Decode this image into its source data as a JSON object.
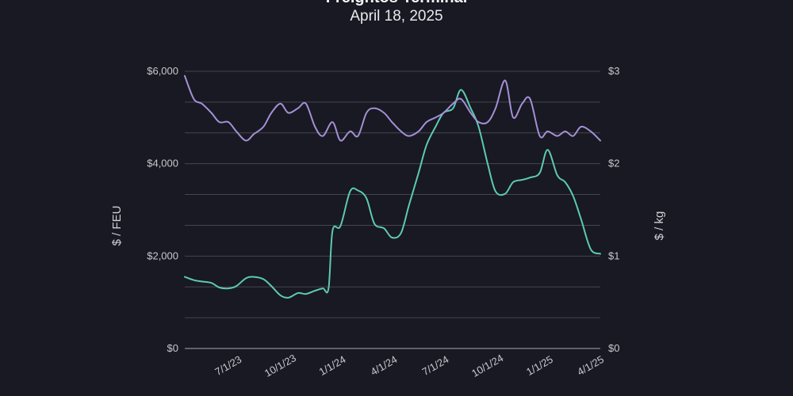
{
  "chart_data": {
    "type": "line",
    "title": "Freightos Terminal",
    "subtitle": "April 18, 2025",
    "ylabel_left": "$ / FEU",
    "ylabel_right": "$ / kg",
    "ylim_left": [
      0,
      6000
    ],
    "ylim_right": [
      0,
      3
    ],
    "x_range": [
      "2023-04-15",
      "2025-04-18"
    ],
    "x_ticks": [
      {
        "date": "2023-07-01",
        "label": "7/1/23"
      },
      {
        "date": "2023-10-01",
        "label": "10/1/23"
      },
      {
        "date": "2024-01-01",
        "label": "1/1/24"
      },
      {
        "date": "2024-04-01",
        "label": "4/1/24"
      },
      {
        "date": "2024-07-01",
        "label": "7/1/24"
      },
      {
        "date": "2024-10-01",
        "label": "10/1/24"
      },
      {
        "date": "2025-01-01",
        "label": "1/1/25"
      },
      {
        "date": "2025-04-01",
        "label": "4/1/25"
      }
    ],
    "y_ticks_left": [
      {
        "value": 0,
        "label": "$0"
      },
      {
        "value": 2000,
        "label": "$2,000"
      },
      {
        "value": 4000,
        "label": "$4,000"
      },
      {
        "value": 6000,
        "label": "$6,000"
      }
    ],
    "y_ticks_right": [
      {
        "value": 0,
        "label": "$0"
      },
      {
        "value": 1,
        "label": "$1"
      },
      {
        "value": 2,
        "label": "$2"
      },
      {
        "value": 3,
        "label": "$3"
      }
    ],
    "gridlines_left": [
      0,
      666.7,
      1333.3,
      2000,
      2666.7,
      3333.3,
      4000,
      4666.7,
      5333.3,
      6000
    ],
    "series": [
      {
        "axis": "left",
        "color": "#5ec9b4",
        "x": [
          "2023-04-15",
          "2023-05-01",
          "2023-05-15",
          "2023-06-01",
          "2023-06-15",
          "2023-07-01",
          "2023-07-15",
          "2023-08-01",
          "2023-08-15",
          "2023-09-01",
          "2023-09-15",
          "2023-10-01",
          "2023-10-15",
          "2023-11-01",
          "2023-11-15",
          "2023-12-01",
          "2023-12-15",
          "2023-12-25",
          "2024-01-01",
          "2024-01-15",
          "2024-02-01",
          "2024-02-15",
          "2024-03-01",
          "2024-03-15",
          "2024-04-01",
          "2024-04-15",
          "2024-05-01",
          "2024-05-15",
          "2024-06-01",
          "2024-06-15",
          "2024-07-01",
          "2024-07-15",
          "2024-08-01",
          "2024-08-15",
          "2024-09-01",
          "2024-09-15",
          "2024-10-01",
          "2024-10-15",
          "2024-11-01",
          "2024-11-15",
          "2024-12-01",
          "2024-12-15",
          "2025-01-01",
          "2025-01-15",
          "2025-02-01",
          "2025-02-15",
          "2025-03-01",
          "2025-03-15",
          "2025-04-01",
          "2025-04-18"
        ],
        "values": [
          1550,
          1480,
          1450,
          1420,
          1320,
          1300,
          1350,
          1520,
          1550,
          1500,
          1350,
          1150,
          1100,
          1200,
          1180,
          1250,
          1300,
          1300,
          2550,
          2650,
          3400,
          3420,
          3250,
          2700,
          2600,
          2400,
          2500,
          3100,
          3800,
          4400,
          4800,
          5100,
          5200,
          5600,
          5200,
          4800,
          4000,
          3400,
          3350,
          3600,
          3650,
          3700,
          3800,
          4300,
          3750,
          3600,
          3300,
          2800,
          2150,
          2050
        ]
      },
      {
        "axis": "right",
        "color": "#a58fd6",
        "x": [
          "2023-04-15",
          "2023-05-01",
          "2023-05-15",
          "2023-06-01",
          "2023-06-15",
          "2023-07-01",
          "2023-07-15",
          "2023-08-01",
          "2023-08-15",
          "2023-09-01",
          "2023-09-15",
          "2023-10-01",
          "2023-10-15",
          "2023-11-01",
          "2023-11-15",
          "2023-12-01",
          "2023-12-15",
          "2024-01-01",
          "2024-01-15",
          "2024-02-01",
          "2024-02-15",
          "2024-03-01",
          "2024-03-15",
          "2024-04-01",
          "2024-04-15",
          "2024-05-01",
          "2024-05-15",
          "2024-06-01",
          "2024-06-15",
          "2024-07-01",
          "2024-07-15",
          "2024-08-01",
          "2024-08-15",
          "2024-09-01",
          "2024-09-15",
          "2024-10-01",
          "2024-10-15",
          "2024-11-01",
          "2024-11-15",
          "2024-12-01",
          "2024-12-15",
          "2025-01-01",
          "2025-01-15",
          "2025-02-01",
          "2025-02-15",
          "2025-03-01",
          "2025-03-15",
          "2025-04-01",
          "2025-04-18"
        ],
        "values": [
          2.95,
          2.7,
          2.65,
          2.55,
          2.45,
          2.45,
          2.35,
          2.25,
          2.32,
          2.4,
          2.55,
          2.65,
          2.55,
          2.6,
          2.65,
          2.4,
          2.3,
          2.45,
          2.25,
          2.35,
          2.3,
          2.55,
          2.6,
          2.55,
          2.45,
          2.35,
          2.3,
          2.35,
          2.45,
          2.5,
          2.55,
          2.65,
          2.7,
          2.55,
          2.45,
          2.45,
          2.6,
          2.9,
          2.5,
          2.65,
          2.7,
          2.3,
          2.35,
          2.3,
          2.35,
          2.3,
          2.4,
          2.35,
          2.25
        ]
      }
    ]
  }
}
